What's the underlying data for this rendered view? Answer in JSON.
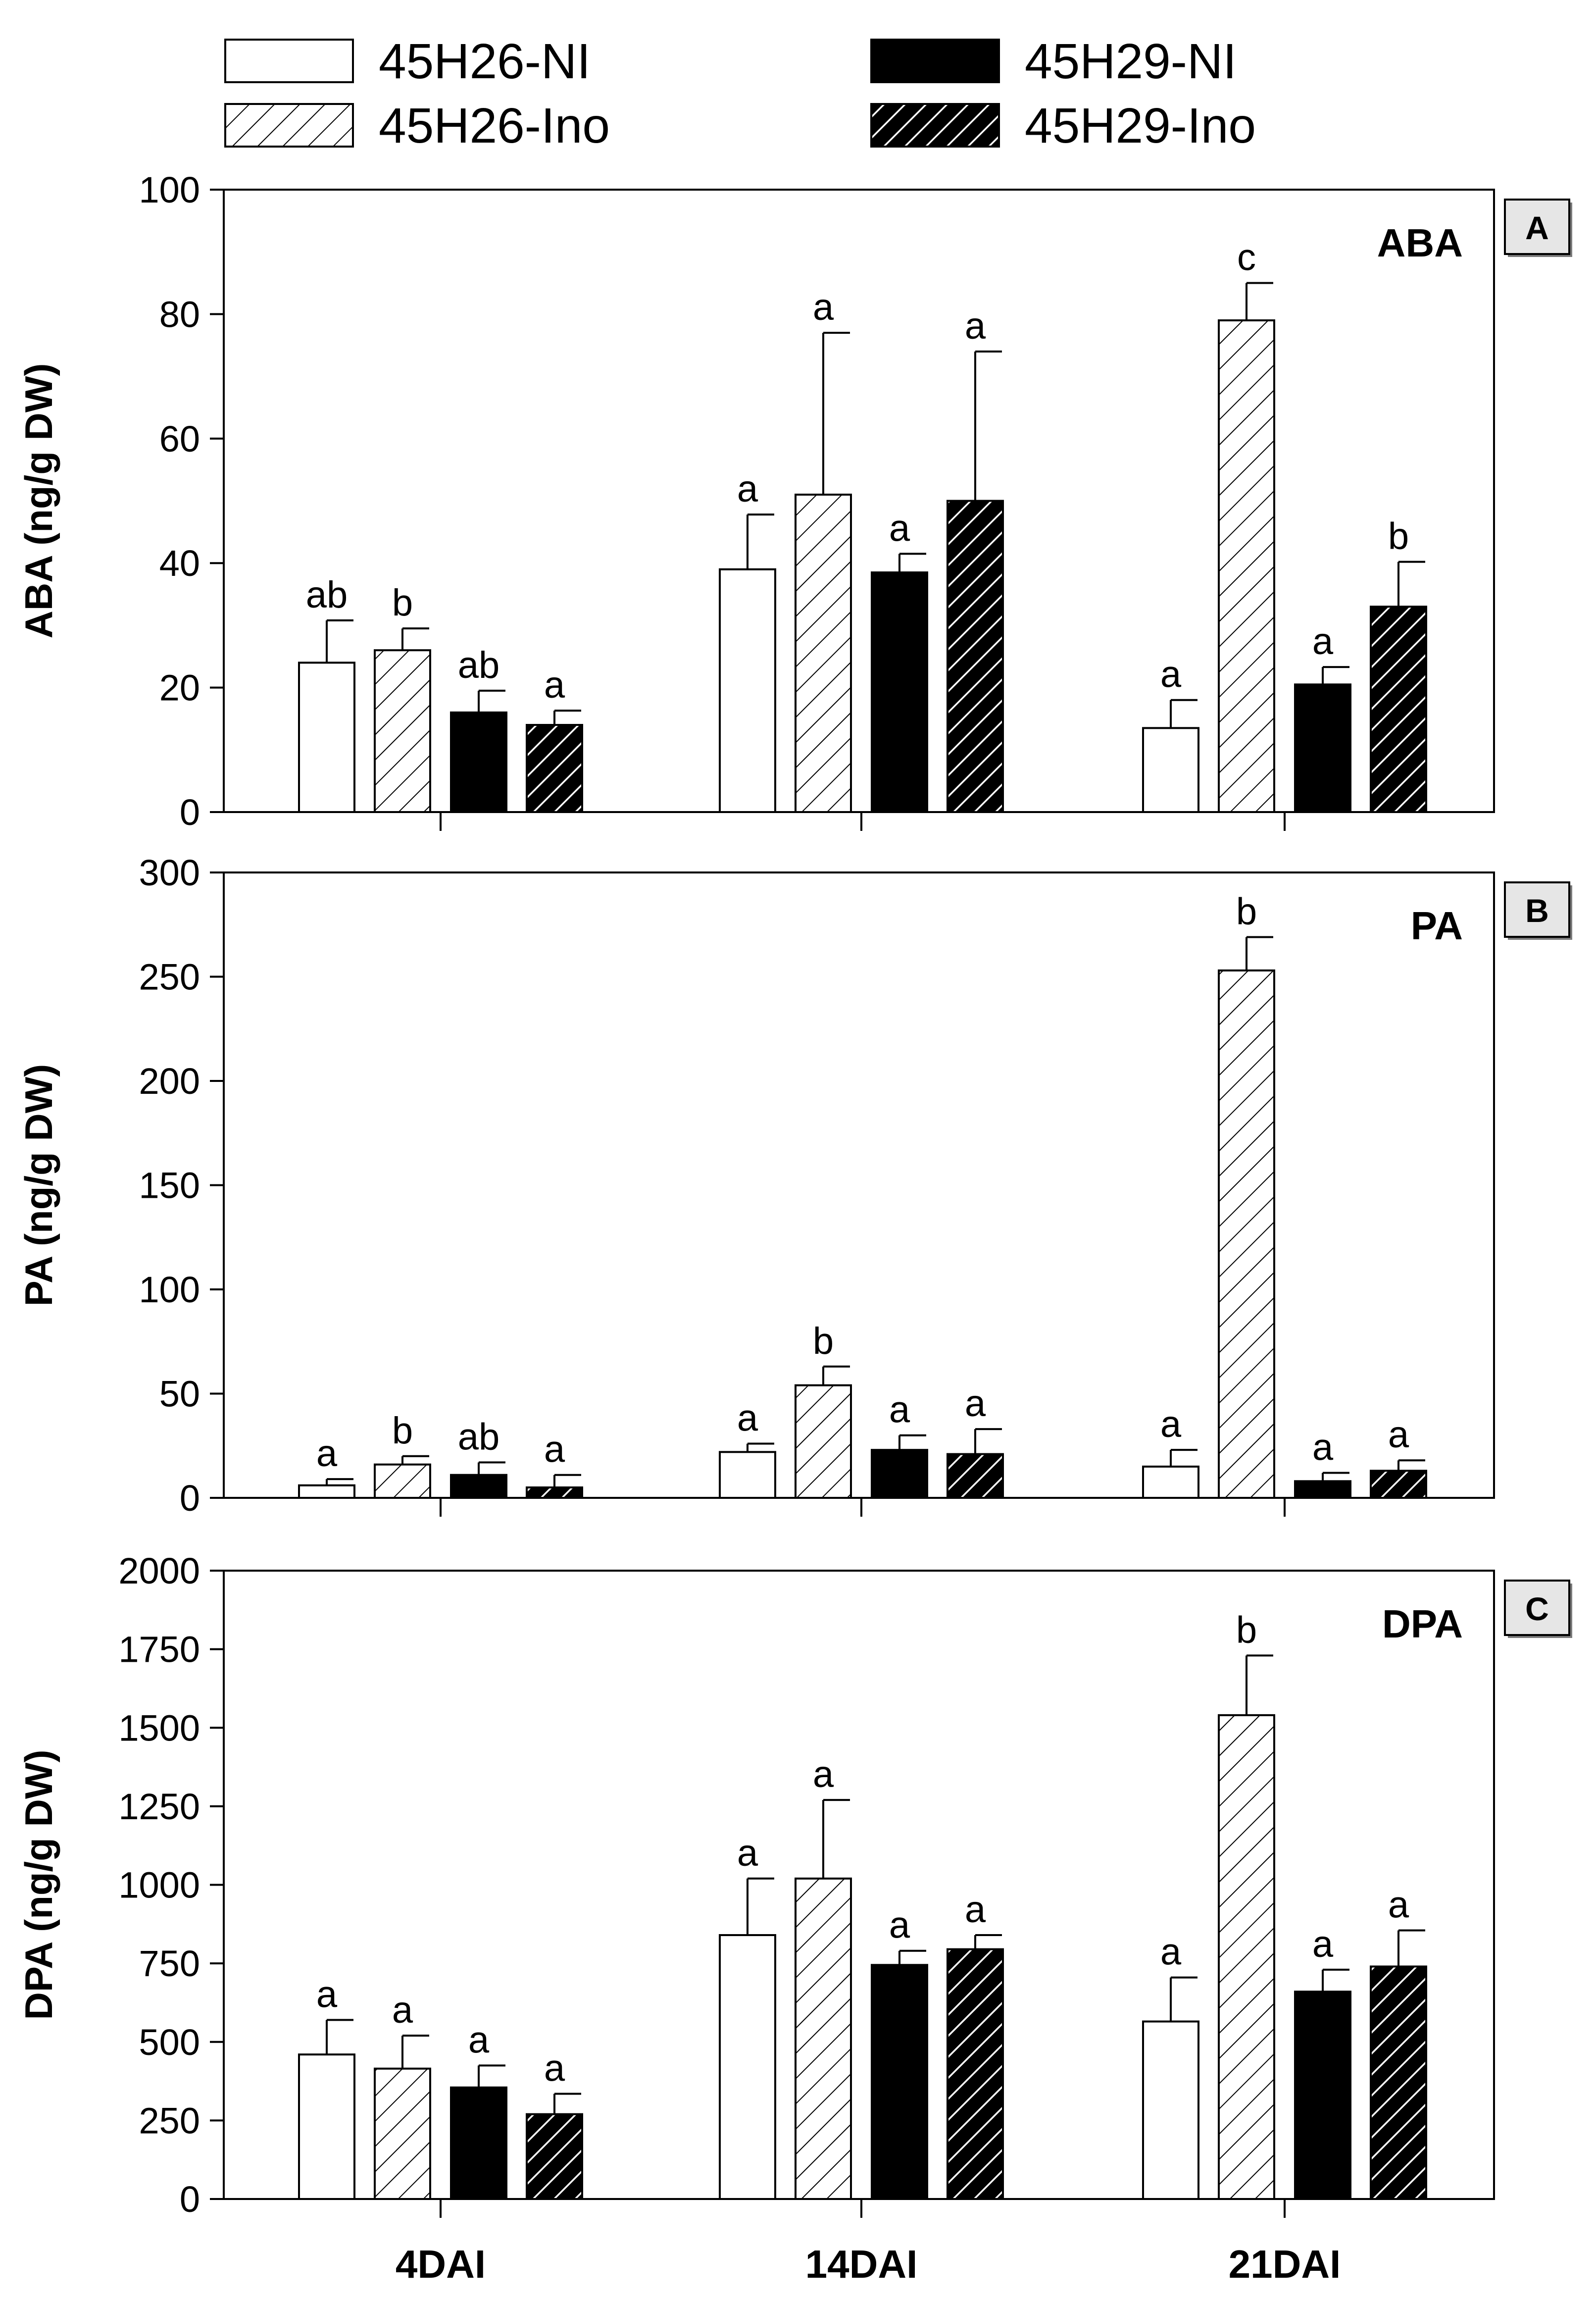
{
  "chart_data": {
    "type": "bar",
    "categories": [
      "4DAI",
      "14DAI",
      "21DAI"
    ],
    "legend": {
      "placement": "top",
      "entries": [
        {
          "name": "45H26-NI",
          "fill": "white"
        },
        {
          "name": "45H26-Ino",
          "fill": "hatch-light"
        },
        {
          "name": "45H29-NI",
          "fill": "black"
        },
        {
          "name": "45H29-Ino",
          "fill": "hatch-dark"
        }
      ]
    },
    "panels": [
      {
        "panel": "A",
        "title": "ABA",
        "ylabel": "ABA (ng/g DW)",
        "ylim": [
          0,
          100
        ],
        "yticks": [
          0,
          20,
          40,
          60,
          80,
          100
        ],
        "series": [
          {
            "name": "45H26-NI",
            "values": [
              24,
              39,
              13.5
            ],
            "errors": [
              6.8,
              8.8,
              4.5
            ],
            "letters": [
              "ab",
              "a",
              "a"
            ]
          },
          {
            "name": "45H26-Ino",
            "values": [
              26,
              51,
              79
            ],
            "errors": [
              3.5,
              26,
              6
            ],
            "letters": [
              "b",
              "a",
              "c"
            ]
          },
          {
            "name": "45H29-NI",
            "values": [
              16,
              38.5,
              20.5
            ],
            "errors": [
              3.5,
              3,
              2.8
            ],
            "letters": [
              "ab",
              "a",
              "a"
            ]
          },
          {
            "name": "45H29-Ino",
            "values": [
              14,
              50,
              33
            ],
            "errors": [
              2.3,
              24,
              7.2
            ],
            "letters": [
              "a",
              "a",
              "b"
            ]
          }
        ]
      },
      {
        "panel": "B",
        "title": "PA",
        "ylabel": "PA (ng/g DW)",
        "ylim": [
          0,
          300
        ],
        "yticks": [
          0,
          50,
          100,
          150,
          200,
          250,
          300
        ],
        "series": [
          {
            "name": "45H26-NI",
            "values": [
              6,
              22,
              15
            ],
            "errors": [
              3,
              4,
              8
            ],
            "letters": [
              "a",
              "a",
              "a"
            ]
          },
          {
            "name": "45H26-Ino",
            "values": [
              16,
              54,
              253
            ],
            "errors": [
              4,
              9,
              16
            ],
            "letters": [
              "b",
              "b",
              "b"
            ]
          },
          {
            "name": "45H29-NI",
            "values": [
              11,
              23,
              8
            ],
            "errors": [
              6,
              7,
              4
            ],
            "letters": [
              "ab",
              "a",
              "a"
            ]
          },
          {
            "name": "45H29-Ino",
            "values": [
              5,
              21,
              13
            ],
            "errors": [
              6,
              12,
              5
            ],
            "letters": [
              "a",
              "a",
              "a"
            ]
          }
        ]
      },
      {
        "panel": "C",
        "title": "DPA",
        "ylabel": "DPA (ng/g DW)",
        "ylim": [
          0,
          2000
        ],
        "yticks": [
          0,
          250,
          500,
          750,
          1000,
          1250,
          1500,
          1750,
          2000
        ],
        "series": [
          {
            "name": "45H26-NI",
            "values": [
              460,
              840,
              565
            ],
            "errors": [
              110,
              180,
              140
            ],
            "letters": [
              "a",
              "a",
              "a"
            ]
          },
          {
            "name": "45H26-Ino",
            "values": [
              415,
              1020,
              1540
            ],
            "errors": [
              105,
              250,
              190
            ],
            "letters": [
              "a",
              "a",
              "b"
            ]
          },
          {
            "name": "45H29-NI",
            "values": [
              355,
              745,
              660
            ],
            "errors": [
              70,
              45,
              70
            ],
            "letters": [
              "a",
              "a",
              "a"
            ]
          },
          {
            "name": "45H29-Ino",
            "values": [
              270,
              795,
              740
            ],
            "errors": [
              65,
              45,
              115
            ],
            "letters": [
              "a",
              "a",
              "a"
            ]
          }
        ]
      }
    ]
  }
}
